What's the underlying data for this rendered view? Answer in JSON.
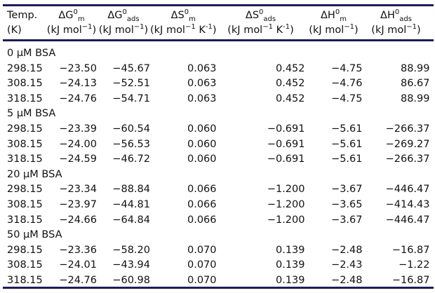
{
  "header": {
    "columns": [
      {
        "symbol": "Temp.",
        "unit": "(K)"
      },
      {
        "symbol": "ΔG",
        "sup": "0",
        "sub": "m",
        "unit": "(kJ mol",
        "unit_sup": "−1",
        "unit_tail": ")"
      },
      {
        "symbol": "ΔG",
        "sup": "0",
        "sub": "ads",
        "unit": "(kJ mol",
        "unit_sup": "−1",
        "unit_tail": ")"
      },
      {
        "symbol": "ΔS",
        "sup": "0",
        "sub": "m",
        "unit": "(kJ mol",
        "unit_sup": "−1",
        "unit_mid": " K",
        "unit_sup2": "-1",
        "unit_tail": ")"
      },
      {
        "symbol": "ΔS",
        "sup": "0",
        "sub": "ads",
        "unit": "(kJ mol",
        "unit_sup": "−1",
        "unit_mid": " K",
        "unit_sup2": "-1",
        "unit_tail": ")"
      },
      {
        "symbol": "ΔH",
        "sup": "0",
        "sub": "m",
        "unit": "(kJ mol",
        "unit_sup": "−1",
        "unit_tail": ")"
      },
      {
        "symbol": "ΔH",
        "sup": "0",
        "sub": "ads",
        "unit": "(kJ mol",
        "unit_sup": "−1",
        "unit_tail": ")"
      }
    ]
  },
  "groups": [
    {
      "label": "0 μM BSA",
      "rows": [
        [
          "298.15",
          "−23.50",
          "−45.67",
          "0.063",
          "0.452",
          "−4.75",
          "88.99"
        ],
        [
          "308.15",
          "−24.13",
          "−52.51",
          "0.063",
          "0.452",
          "−4.76",
          "86.67"
        ],
        [
          "318.15",
          "−24.76",
          "−54.71",
          "0.063",
          "0.452",
          "−4.75",
          "88.99"
        ]
      ]
    },
    {
      "label": "5 μM BSA",
      "rows": [
        [
          "298.15",
          "−23.39",
          "−60.54",
          "0.060",
          "−0.691",
          "−5.61",
          "−266.37"
        ],
        [
          "308.15",
          "−24.00",
          "−56.53",
          "0.060",
          "−0.691",
          "−5.61",
          "−269.27"
        ],
        [
          "318.15",
          "−24.59",
          "−46.72",
          "0.060",
          "−0.691",
          "−5.61",
          "−266.37"
        ]
      ]
    },
    {
      "label": "20 μM BSA",
      "rows": [
        [
          "298.15",
          "−23.34",
          "−88.84",
          "0.066",
          "−1.200",
          "−3.67",
          "−446.47"
        ],
        [
          "308.15",
          "−23.97",
          "−44.81",
          "0.066",
          "−1.200",
          "−3.65",
          "−414.43"
        ],
        [
          "318.15",
          "−24.66",
          "−64.84",
          "0.066",
          "−1.200",
          "−3.67",
          "−446.47"
        ]
      ]
    },
    {
      "label": "50 μM BSA",
      "rows": [
        [
          "298.15",
          "−23.36",
          "−58.20",
          "0.070",
          "0.139",
          "−2.48",
          "−16.87"
        ],
        [
          "308.15",
          "−24.01",
          "−43.94",
          "0.070",
          "0.139",
          "−2.43",
          "−1.22"
        ],
        [
          "318.15",
          "−24.76",
          "−60.98",
          "0.070",
          "0.139",
          "−2.48",
          "−16.87"
        ]
      ]
    }
  ]
}
